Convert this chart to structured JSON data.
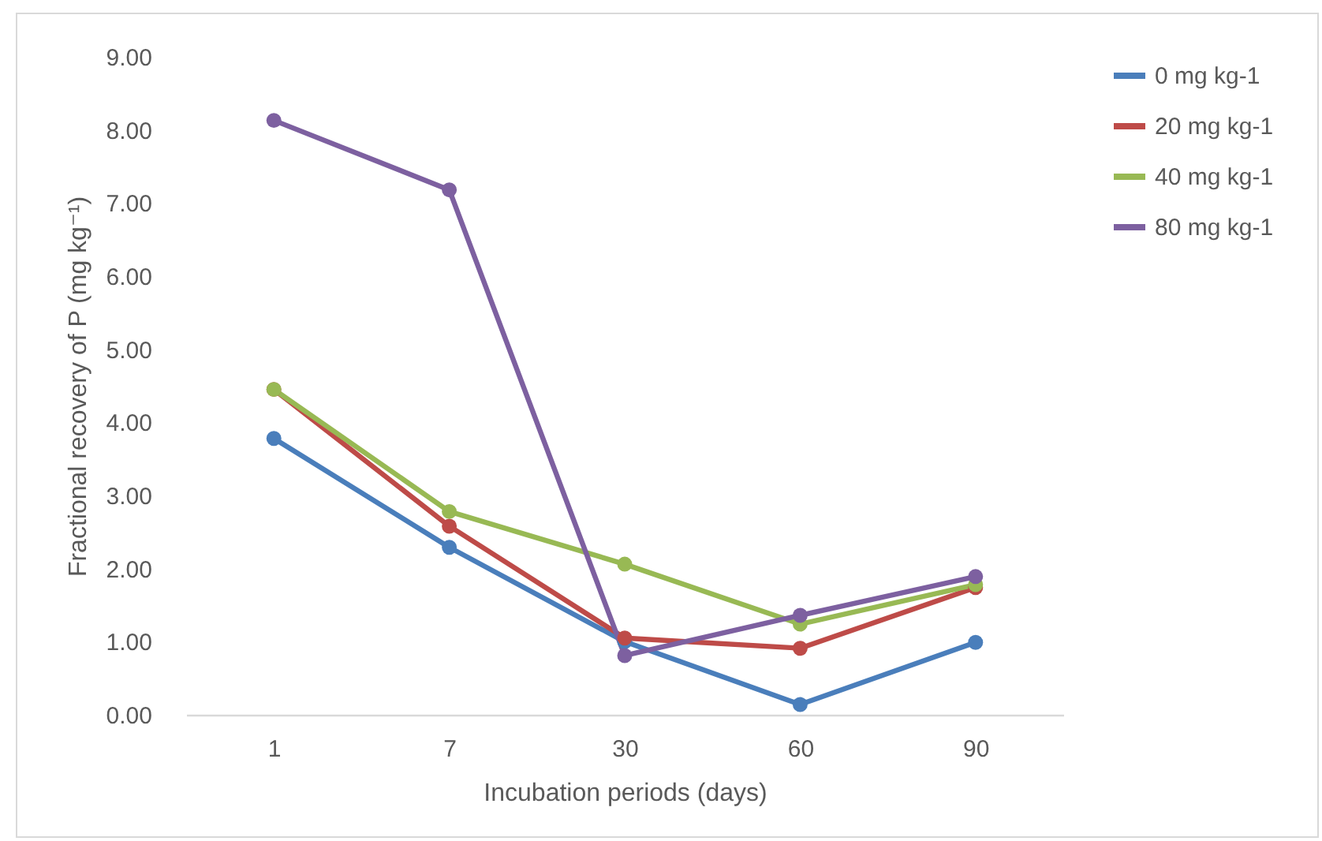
{
  "chart_data": {
    "type": "line",
    "xlabel": "Incubation periods (days)",
    "ylabel": "Fractional recovery of P (mg kg⁻¹)",
    "categories": [
      "1",
      "7",
      "30",
      "60",
      "90"
    ],
    "series": [
      {
        "name": "0 mg kg-1",
        "color": "#4a7ebb",
        "values": [
          3.78,
          2.29,
          1.0,
          0.14,
          0.99
        ]
      },
      {
        "name": "20 mg kg-1",
        "color": "#be4b48",
        "values": [
          4.45,
          2.58,
          1.05,
          0.91,
          1.74
        ]
      },
      {
        "name": "40 mg kg-1",
        "color": "#98b954",
        "values": [
          4.45,
          2.78,
          2.06,
          1.24,
          1.78
        ]
      },
      {
        "name": "80 mg kg-1",
        "color": "#7d60a0",
        "values": [
          8.13,
          7.18,
          0.81,
          1.36,
          1.89
        ]
      }
    ],
    "ylim": [
      0,
      9
    ],
    "yticks": [
      {
        "value": 0,
        "label": "0.00"
      },
      {
        "value": 1,
        "label": "1.00"
      },
      {
        "value": 2,
        "label": "2.00"
      },
      {
        "value": 3,
        "label": "3.00"
      },
      {
        "value": 4,
        "label": "4.00"
      },
      {
        "value": 5,
        "label": "5.00"
      },
      {
        "value": 6,
        "label": "6.00"
      },
      {
        "value": 7,
        "label": "7.00"
      },
      {
        "value": 8,
        "label": "8.00"
      },
      {
        "value": 9,
        "label": "9.00"
      }
    ],
    "grid": false,
    "legend": "right",
    "marker": "circle",
    "line_style": "solid"
  }
}
